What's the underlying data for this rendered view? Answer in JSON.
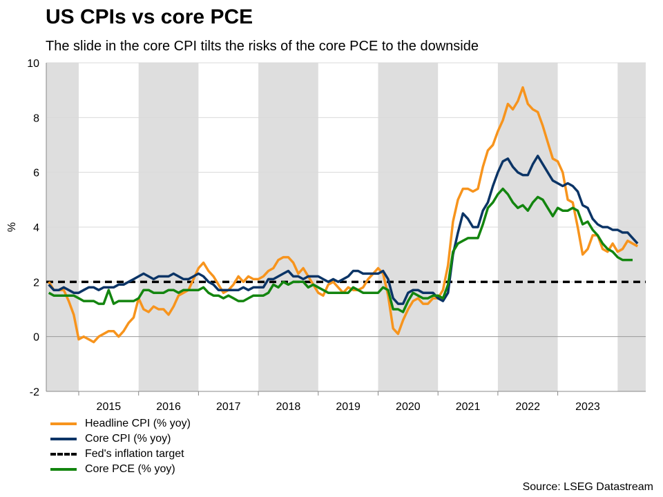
{
  "title": "US CPIs vs core PCE",
  "subtitle": "The slide in the core CPI tilts the risks of the core PCE to the downside",
  "source": "Source: LSEG Datastream",
  "chart_data": {
    "type": "line",
    "title": "US CPIs vs core PCE",
    "xlabel": "",
    "ylabel": "%",
    "ylim": [
      -2,
      10
    ],
    "yticks": [
      -2,
      0,
      2,
      4,
      6,
      8,
      10
    ],
    "year_labels": [
      "2015",
      "2016",
      "2017",
      "2018",
      "2019",
      "2020",
      "2021",
      "2022",
      "2023"
    ],
    "xlim": [
      "2014-07",
      "2024-06"
    ],
    "start": "2014-07",
    "shaded_years": [
      2014,
      2016,
      2018,
      2020,
      2022,
      2024
    ],
    "grid": true,
    "legend_position": "bottom-left",
    "series": [
      {
        "name": "Headline CPI (% yoy)",
        "color": "#f7941d",
        "values": [
          2.0,
          1.7,
          1.7,
          1.7,
          1.3,
          0.8,
          -0.1,
          0.0,
          -0.1,
          -0.2,
          0.0,
          0.1,
          0.2,
          0.2,
          0.0,
          0.2,
          0.5,
          0.7,
          1.4,
          1.0,
          0.9,
          1.1,
          1.0,
          1.0,
          0.8,
          1.1,
          1.5,
          1.6,
          1.7,
          2.1,
          2.5,
          2.7,
          2.4,
          2.2,
          1.9,
          1.6,
          1.7,
          1.9,
          2.2,
          2.0,
          2.2,
          2.1,
          2.1,
          2.2,
          2.4,
          2.5,
          2.8,
          2.9,
          2.9,
          2.7,
          2.3,
          2.5,
          2.2,
          1.9,
          1.6,
          1.5,
          1.9,
          2.0,
          1.8,
          1.6,
          1.8,
          1.7,
          1.7,
          1.8,
          2.1,
          2.3,
          2.5,
          2.3,
          1.5,
          0.3,
          0.1,
          0.6,
          1.0,
          1.3,
          1.4,
          1.2,
          1.2,
          1.4,
          1.4,
          1.7,
          2.6,
          4.2,
          5.0,
          5.4,
          5.4,
          5.3,
          5.4,
          6.2,
          6.8,
          7.0,
          7.5,
          7.9,
          8.5,
          8.3,
          8.6,
          9.1,
          8.5,
          8.3,
          8.2,
          7.7,
          7.1,
          6.5,
          6.4,
          6.0,
          5.0,
          4.9,
          4.0,
          3.0,
          3.2,
          3.7,
          3.7,
          3.2,
          3.1,
          3.4,
          3.1,
          3.2,
          3.5,
          3.4,
          3.3
        ]
      },
      {
        "name": "Core CPI (% yoy)",
        "color": "#0b3466",
        "values": [
          1.9,
          1.7,
          1.7,
          1.8,
          1.7,
          1.6,
          1.6,
          1.7,
          1.8,
          1.8,
          1.7,
          1.8,
          1.8,
          1.8,
          1.9,
          1.9,
          2.0,
          2.1,
          2.2,
          2.3,
          2.2,
          2.1,
          2.2,
          2.2,
          2.2,
          2.3,
          2.2,
          2.1,
          2.1,
          2.2,
          2.3,
          2.2,
          2.0,
          1.9,
          1.7,
          1.7,
          1.7,
          1.7,
          1.7,
          1.8,
          1.7,
          1.8,
          1.8,
          1.8,
          2.1,
          2.1,
          2.2,
          2.3,
          2.4,
          2.2,
          2.2,
          2.1,
          2.2,
          2.2,
          2.2,
          2.1,
          2.0,
          2.1,
          2.0,
          2.1,
          2.2,
          2.4,
          2.4,
          2.3,
          2.3,
          2.3,
          2.3,
          2.4,
          2.1,
          1.4,
          1.2,
          1.2,
          1.6,
          1.7,
          1.7,
          1.6,
          1.6,
          1.6,
          1.4,
          1.3,
          1.6,
          3.0,
          3.8,
          4.5,
          4.3,
          4.0,
          4.0,
          4.6,
          4.9,
          5.5,
          6.0,
          6.4,
          6.5,
          6.2,
          6.0,
          5.9,
          5.9,
          6.3,
          6.6,
          6.3,
          6.0,
          5.7,
          5.6,
          5.5,
          5.6,
          5.5,
          5.3,
          4.8,
          4.7,
          4.3,
          4.1,
          4.0,
          4.0,
          3.9,
          3.9,
          3.8,
          3.8,
          3.6,
          3.4
        ]
      },
      {
        "name": "Fed's inflation target",
        "color": "#000000",
        "dashed": true,
        "values": [
          2
        ]
      },
      {
        "name": "Core PCE (% yoy)",
        "color": "#13850f",
        "values": [
          1.6,
          1.5,
          1.5,
          1.5,
          1.5,
          1.5,
          1.4,
          1.3,
          1.3,
          1.3,
          1.2,
          1.2,
          1.7,
          1.2,
          1.3,
          1.3,
          1.3,
          1.3,
          1.4,
          1.7,
          1.7,
          1.6,
          1.6,
          1.6,
          1.7,
          1.7,
          1.6,
          1.7,
          1.7,
          1.7,
          1.7,
          1.8,
          1.6,
          1.5,
          1.5,
          1.4,
          1.5,
          1.4,
          1.3,
          1.3,
          1.4,
          1.5,
          1.5,
          1.5,
          1.6,
          1.9,
          1.8,
          2.0,
          1.9,
          2.0,
          2.0,
          2.0,
          1.8,
          1.9,
          1.8,
          1.7,
          1.6,
          1.6,
          1.6,
          1.6,
          1.6,
          1.8,
          1.7,
          1.6,
          1.6,
          1.6,
          1.6,
          1.8,
          1.7,
          1.0,
          1.0,
          0.9,
          1.3,
          1.6,
          1.5,
          1.4,
          1.4,
          1.5,
          1.5,
          1.4,
          1.9,
          3.1,
          3.4,
          3.5,
          3.6,
          3.6,
          3.6,
          4.1,
          4.7,
          4.9,
          5.2,
          5.4,
          5.2,
          4.9,
          4.7,
          4.8,
          4.6,
          4.9,
          5.1,
          5.0,
          4.7,
          4.4,
          4.7,
          4.6,
          4.6,
          4.7,
          4.6,
          4.1,
          4.2,
          3.9,
          3.7,
          3.4,
          3.2,
          3.1,
          2.9,
          2.8,
          2.8,
          2.8
        ]
      }
    ]
  }
}
